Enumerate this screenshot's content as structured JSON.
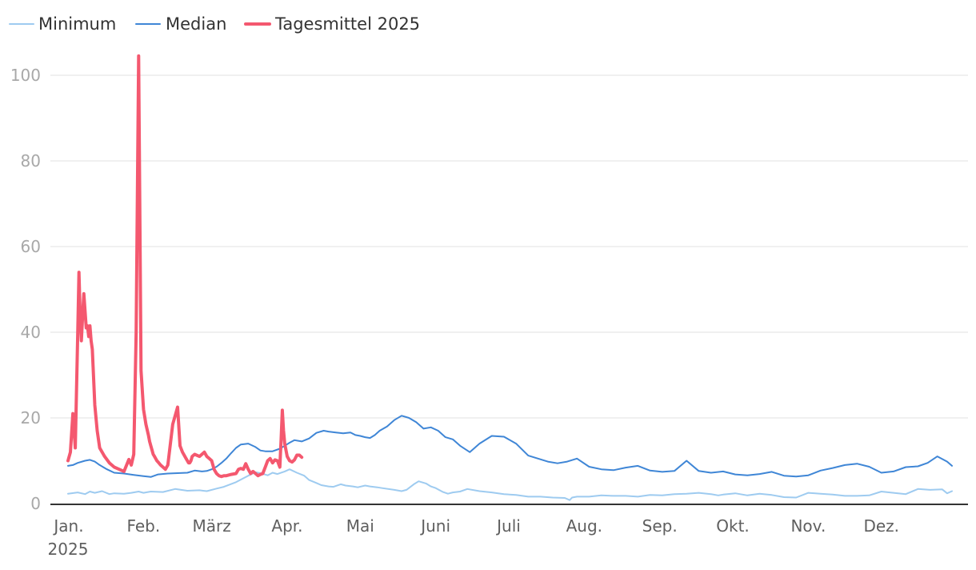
{
  "chart_data": {
    "type": "line",
    "x_unit": "day of year 2025",
    "ylim": [
      0,
      105
    ],
    "y_ticks": [
      0,
      20,
      40,
      60,
      80,
      100
    ],
    "grid": true,
    "legend_placement": "top-left",
    "x_ticks": [
      {
        "day": 1,
        "label": "Jan."
      },
      {
        "day": 32,
        "label": "Feb."
      },
      {
        "day": 60,
        "label": "März"
      },
      {
        "day": 91,
        "label": "Apr."
      },
      {
        "day": 121,
        "label": "Mai"
      },
      {
        "day": 152,
        "label": "Juni"
      },
      {
        "day": 182,
        "label": "Juli"
      },
      {
        "day": 213,
        "label": "Aug."
      },
      {
        "day": 244,
        "label": "Sep."
      },
      {
        "day": 274,
        "label": "Okt."
      },
      {
        "day": 305,
        "label": "Nov."
      },
      {
        "day": 335,
        "label": "Dez."
      }
    ],
    "x_year_label": "2025",
    "series": [
      {
        "name": "Minimum",
        "color": "#9ecbf0",
        "width": 2,
        "x": [
          1,
          5,
          8,
          10,
          12,
          15,
          18,
          20,
          24,
          27,
          30,
          32,
          35,
          40,
          45,
          50,
          55,
          58,
          62,
          65,
          70,
          75,
          78,
          80,
          83,
          85,
          87,
          90,
          92,
          95,
          98,
          100,
          103,
          105,
          108,
          110,
          113,
          115,
          118,
          120,
          123,
          125,
          128,
          130,
          135,
          138,
          140,
          143,
          145,
          148,
          150,
          152,
          155,
          157,
          159,
          162,
          165,
          170,
          175,
          180,
          185,
          190,
          195,
          200,
          205,
          207,
          208,
          210,
          215,
          220,
          225,
          230,
          235,
          240,
          245,
          250,
          255,
          260,
          265,
          268,
          270,
          275,
          280,
          285,
          290,
          295,
          300,
          305,
          310,
          315,
          320,
          325,
          330,
          335,
          340,
          345,
          350,
          355,
          360,
          362,
          364
        ],
        "values": [
          2.3,
          2.6,
          2.2,
          2.8,
          2.5,
          2.9,
          2.2,
          2.4,
          2.3,
          2.5,
          2.8,
          2.5,
          2.8,
          2.7,
          3.4,
          3.0,
          3.1,
          2.9,
          3.5,
          3.9,
          5.0,
          6.5,
          7.3,
          7.1,
          6.6,
          7.2,
          6.9,
          7.5,
          8.0,
          7.2,
          6.5,
          5.5,
          4.8,
          4.3,
          4.0,
          3.9,
          4.5,
          4.2,
          4.0,
          3.8,
          4.2,
          4.0,
          3.8,
          3.6,
          3.2,
          2.9,
          3.2,
          4.5,
          5.2,
          4.7,
          4.0,
          3.6,
          2.7,
          2.3,
          2.6,
          2.8,
          3.4,
          2.9,
          2.6,
          2.2,
          2.0,
          1.6,
          1.6,
          1.4,
          1.3,
          0.8,
          1.4,
          1.6,
          1.6,
          1.9,
          1.8,
          1.8,
          1.6,
          2.0,
          1.9,
          2.2,
          2.3,
          2.5,
          2.2,
          1.9,
          2.1,
          2.4,
          1.9,
          2.3,
          2.0,
          1.5,
          1.4,
          2.5,
          2.3,
          2.1,
          1.8,
          1.8,
          1.9,
          2.8,
          2.5,
          2.2,
          3.4,
          3.2,
          3.3,
          2.4,
          2.9
        ]
      },
      {
        "name": "Median",
        "color": "#3f86d6",
        "width": 2,
        "x": [
          1,
          3,
          5,
          8,
          10,
          12,
          14,
          17,
          20,
          24,
          28,
          32,
          35,
          38,
          42,
          46,
          50,
          53,
          56,
          58,
          60,
          62,
          64,
          66,
          68,
          70,
          72,
          75,
          78,
          80,
          82,
          85,
          88,
          90,
          92,
          94,
          97,
          100,
          103,
          106,
          108,
          111,
          114,
          117,
          119,
          121,
          123,
          125,
          127,
          129,
          132,
          135,
          138,
          141,
          144,
          147,
          150,
          153,
          156,
          159,
          162,
          166,
          170,
          175,
          180,
          185,
          190,
          194,
          198,
          202,
          206,
          210,
          215,
          220,
          225,
          230,
          235,
          240,
          245,
          250,
          255,
          260,
          265,
          270,
          275,
          280,
          285,
          290,
          295,
          300,
          305,
          310,
          315,
          320,
          325,
          330,
          335,
          340,
          345,
          350,
          354,
          358,
          362,
          364
        ],
        "values": [
          8.8,
          9.0,
          9.5,
          10.0,
          10.2,
          9.8,
          9.0,
          8.0,
          7.2,
          7.0,
          6.7,
          6.4,
          6.2,
          6.8,
          7.0,
          7.1,
          7.2,
          7.7,
          7.5,
          7.6,
          8.0,
          8.6,
          9.5,
          10.5,
          11.8,
          13.0,
          13.8,
          14.0,
          13.2,
          12.4,
          12.2,
          12.2,
          12.8,
          13.5,
          14.2,
          14.8,
          14.5,
          15.2,
          16.5,
          17.0,
          16.8,
          16.6,
          16.4,
          16.6,
          16.0,
          15.8,
          15.5,
          15.3,
          16.0,
          17.0,
          18.0,
          19.5,
          20.5,
          20.0,
          19.0,
          17.5,
          17.8,
          17.0,
          15.5,
          15.0,
          13.5,
          12.0,
          14.0,
          15.8,
          15.6,
          14.0,
          11.2,
          10.5,
          9.8,
          9.4,
          9.8,
          10.5,
          8.6,
          8.0,
          7.8,
          8.4,
          8.8,
          7.7,
          7.4,
          7.6,
          10.0,
          7.6,
          7.2,
          7.5,
          6.8,
          6.6,
          6.9,
          7.4,
          6.5,
          6.3,
          6.6,
          7.7,
          8.3,
          9.0,
          9.3,
          8.6,
          7.2,
          7.5,
          8.5,
          8.7,
          9.5,
          11.0,
          9.8,
          8.8
        ]
      },
      {
        "name": "Tagesmittel 2025",
        "color": "#f4586f",
        "width": 4,
        "x": [
          1,
          2,
          3,
          4,
          5,
          5.5,
          6,
          6.5,
          7,
          7.5,
          8,
          8.5,
          9,
          9.5,
          10,
          10.5,
          11,
          12,
          13,
          14,
          16,
          18,
          20,
          22,
          24,
          26,
          27,
          28,
          29,
          30,
          31,
          32,
          33,
          34,
          34.5,
          35,
          35.5,
          36,
          36.5,
          37,
          37.5,
          38,
          39,
          40,
          41,
          42,
          44,
          46,
          47,
          48,
          49,
          49.5,
          50,
          50.5,
          51,
          51.5,
          52,
          53,
          55,
          57,
          58,
          59,
          60,
          61,
          62,
          63,
          64,
          65,
          66,
          68,
          70,
          71,
          72,
          73,
          74,
          75,
          76,
          77,
          78,
          79,
          80,
          81,
          82,
          83,
          84,
          85,
          86,
          87,
          88,
          88.5,
          89,
          89.5,
          90,
          91,
          92,
          93,
          94,
          95,
          96,
          97
        ],
        "values": [
          10.0,
          12.0,
          21.0,
          13.0,
          40.0,
          54.0,
          44.0,
          38.0,
          44.0,
          49.0,
          45.0,
          41.0,
          41.5,
          39.0,
          41.5,
          38.0,
          36.0,
          23.0,
          17.0,
          13.0,
          11.0,
          9.5,
          8.5,
          8.0,
          7.5,
          10.3,
          9.0,
          11.5,
          40.0,
          104.5,
          31.0,
          22.0,
          18.5,
          16.0,
          14.5,
          13.5,
          12.5,
          11.5,
          11.0,
          10.5,
          10.0,
          9.7,
          9.0,
          8.5,
          8.0,
          9.0,
          18.5,
          22.5,
          13.5,
          12.0,
          11.0,
          10.5,
          10.0,
          9.5,
          9.5,
          10.0,
          11.0,
          11.5,
          11.0,
          12.0,
          11.0,
          10.5,
          10.0,
          8.0,
          7.0,
          6.5,
          6.3,
          6.5,
          6.5,
          6.8,
          7.0,
          8.0,
          8.2,
          8.0,
          9.3,
          8.0,
          7.0,
          7.5,
          7.0,
          6.5,
          6.8,
          7.0,
          8.5,
          10.0,
          10.5,
          9.5,
          10.2,
          10.0,
          8.5,
          15.0,
          21.8,
          17.0,
          14.0,
          11.0,
          10.0,
          9.7,
          10.2,
          11.3,
          11.3,
          10.8
        ]
      }
    ]
  }
}
